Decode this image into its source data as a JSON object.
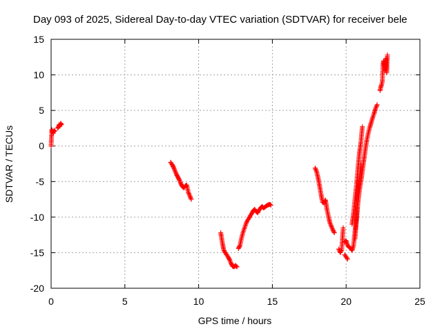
{
  "chart_data": {
    "type": "scatter",
    "title": "Day 093 of 2025, Sidereal Day-to-day VTEC variation (SDTVAR) for receiver bele",
    "xlabel": "GPS time / hours",
    "ylabel": "SDTVAR / TECUs",
    "xlim": [
      0,
      25
    ],
    "ylim": [
      -20,
      15
    ],
    "xticks": [
      0,
      5,
      10,
      15,
      20,
      25
    ],
    "yticks": [
      -20,
      -15,
      -10,
      -5,
      0,
      5,
      10,
      15
    ],
    "grid": true,
    "marker": "+",
    "color": "#ff0000",
    "series": [
      {
        "name": "SDTVAR",
        "segments": [
          {
            "x": [
              0.0,
              0.05,
              0.1,
              0.15,
              0.2,
              0.25
            ],
            "y": [
              0.0,
              2.3,
              2.0,
              1.8,
              2.2,
              2.1
            ]
          },
          {
            "x": [
              0.45,
              0.5,
              0.55,
              0.6,
              0.65,
              0.7
            ],
            "y": [
              2.5,
              2.7,
              3.0,
              2.8,
              3.2,
              3.0
            ]
          },
          {
            "x": [
              8.1,
              8.2,
              8.3,
              8.4,
              8.5,
              8.6,
              8.7,
              8.8,
              8.9,
              9.0,
              9.1,
              9.2,
              9.3,
              9.4,
              9.5
            ],
            "y": [
              -2.3,
              -2.6,
              -3.0,
              -3.5,
              -4.0,
              -4.4,
              -4.8,
              -5.3,
              -5.7,
              -5.9,
              -5.6,
              -5.5,
              -6.5,
              -7.0,
              -7.5
            ]
          },
          {
            "x": [
              11.5,
              11.6,
              11.7,
              11.8,
              11.9,
              12.0,
              12.1,
              12.2,
              12.3,
              12.4,
              12.5,
              12.6
            ],
            "y": [
              -12.2,
              -13.5,
              -14.6,
              -15.0,
              -15.3,
              -15.6,
              -16.0,
              -16.5,
              -16.9,
              -17.0,
              -16.8,
              -17.0
            ]
          },
          {
            "x": [
              12.7,
              12.8,
              12.9,
              13.0,
              13.1,
              13.2,
              13.3,
              13.4,
              13.5,
              13.6,
              13.7,
              13.8,
              13.9,
              14.0,
              14.1,
              14.2,
              14.3,
              14.4,
              14.5,
              14.6,
              14.7,
              14.8,
              14.9
            ],
            "y": [
              -14.4,
              -14.0,
              -13.0,
              -12.2,
              -11.6,
              -11.0,
              -10.5,
              -10.2,
              -9.8,
              -9.5,
              -9.1,
              -8.9,
              -9.2,
              -9.4,
              -9.0,
              -8.7,
              -8.5,
              -8.7,
              -8.6,
              -8.4,
              -8.3,
              -8.2,
              -8.3
            ]
          },
          {
            "x": [
              17.9,
              18.0,
              18.1,
              18.2,
              18.3,
              18.4,
              18.5,
              18.6,
              18.7,
              18.8,
              18.9,
              19.0,
              19.1,
              19.2
            ],
            "y": [
              -3.1,
              -3.6,
              -4.5,
              -5.6,
              -6.8,
              -7.9,
              -8.0,
              -7.6,
              -8.9,
              -9.9,
              -10.8,
              -11.3,
              -11.8,
              -12.2
            ]
          },
          {
            "x": [
              19.5,
              19.6,
              19.7,
              19.8
            ],
            "y": [
              -14.5,
              -15.0,
              -14.6,
              -11.5
            ]
          },
          {
            "x": [
              19.9,
              20.0,
              20.1,
              20.2,
              20.3,
              20.4,
              20.5,
              20.6,
              20.7,
              20.8,
              20.9,
              21.0,
              21.1,
              21.2,
              21.3,
              21.4,
              21.5,
              21.6,
              21.7,
              21.8,
              21.9,
              22.0,
              22.1
            ],
            "y": [
              -13.5,
              -13.3,
              -14.0,
              -14.2,
              -14.4,
              -14.7,
              -14.0,
              -12.0,
              -10.0,
              -8.0,
              -6.2,
              -5.0,
              -3.5,
              -2.0,
              -0.5,
              0.8,
              1.8,
              2.6,
              3.3,
              4.0,
              4.6,
              5.3,
              5.8
            ]
          },
          {
            "x": [
              19.9,
              20.0,
              20.1
            ],
            "y": [
              -15.3,
              -15.6,
              -15.9
            ]
          },
          {
            "x": [
              20.4,
              20.5,
              20.6,
              20.7,
              20.8,
              20.9,
              21.0,
              21.1
            ],
            "y": [
              -11.0,
              -9.5,
              -7.5,
              -5.5,
              -3.2,
              -1.0,
              0.5,
              2.7
            ]
          },
          {
            "x": [
              20.6,
              20.7,
              20.8,
              20.9,
              21.0
            ],
            "y": [
              -13.0,
              -10.5,
              -7.8,
              -5.0,
              -2.6
            ]
          },
          {
            "x": [
              22.3,
              22.35,
              22.4,
              22.45,
              22.5,
              22.55,
              22.6,
              22.65,
              22.7,
              22.75,
              22.8
            ],
            "y": [
              7.8,
              8.3,
              8.6,
              9.0,
              11.5,
              12.0,
              11.2,
              10.6,
              12.3,
              10.3,
              12.8
            ]
          }
        ]
      }
    ]
  }
}
